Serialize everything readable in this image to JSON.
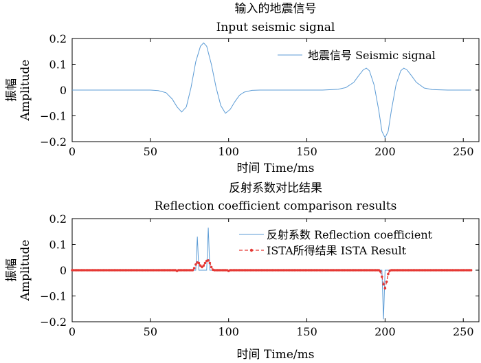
{
  "chart_data": [
    {
      "type": "line",
      "title": "输入的地震信号",
      "subtitle": "Input seismic signal",
      "xlabel": "时间 Time/ms",
      "ylabel_cn": "振幅",
      "ylabel": "Amplitude",
      "xlim": [
        0,
        260
      ],
      "ylim": [
        -0.2,
        0.2
      ],
      "xticks": [
        "0",
        "50",
        "100",
        "150",
        "200",
        "250"
      ],
      "yticks": [
        "0.2",
        "0.1",
        "0",
        "−0.1",
        "−0.2"
      ],
      "legend_position": "top-right",
      "colors": {
        "signal": "#5b9bd5"
      },
      "series": [
        {
          "name": "地震信号 Seismic signal",
          "x": [
            0,
            50,
            55,
            60,
            64,
            67,
            70,
            73,
            76,
            79,
            82,
            84,
            86,
            89,
            92,
            95,
            98,
            101,
            104,
            107,
            110,
            115,
            120,
            130,
            160,
            170,
            175,
            180,
            183,
            186,
            188,
            190,
            193,
            196,
            198,
            200,
            202,
            204,
            207,
            210,
            212,
            214,
            217,
            220,
            225,
            230,
            240,
            255
          ],
          "y": [
            0,
            0,
            -0.002,
            -0.01,
            -0.035,
            -0.065,
            -0.085,
            -0.065,
            0.01,
            0.11,
            0.17,
            0.183,
            0.17,
            0.1,
            0.01,
            -0.06,
            -0.09,
            -0.075,
            -0.045,
            -0.02,
            -0.008,
            -0.001,
            0,
            0,
            0,
            0.003,
            0.01,
            0.03,
            0.055,
            0.078,
            0.085,
            0.075,
            0.02,
            -0.08,
            -0.16,
            -0.185,
            -0.16,
            -0.08,
            0.02,
            0.075,
            0.085,
            0.078,
            0.055,
            0.03,
            0.008,
            0.002,
            0,
            0
          ]
        }
      ]
    },
    {
      "type": "line",
      "title": "反射系数对比结果",
      "subtitle": "Reflection coefficient comparison results",
      "xlabel": "时间 Time/ms",
      "ylabel_cn": "振幅",
      "ylabel": "Amplitude",
      "xlim": [
        0,
        260
      ],
      "ylim": [
        -0.2,
        0.2
      ],
      "xticks": [
        "0",
        "50",
        "100",
        "150",
        "200",
        "250"
      ],
      "yticks": [
        "0.2",
        "0.1",
        "0",
        "−0.1",
        "−0.2"
      ],
      "legend_position": "top-right",
      "colors": {
        "reflection": "#5b9bd5",
        "ista": "#e53935"
      },
      "series": [
        {
          "name": "反射系数 Reflection coefficient",
          "x": [
            0,
            78,
            79,
            80,
            81,
            82,
            85,
            86,
            87,
            88,
            89,
            197,
            198,
            199,
            200,
            201,
            202,
            255
          ],
          "y": [
            0,
            0,
            0,
            0.13,
            0,
            0,
            0,
            0,
            0.165,
            0,
            0,
            0,
            0,
            -0.19,
            0,
            0,
            0,
            0
          ]
        },
        {
          "name": "ISTA所得结果 ISTA Result",
          "x": [
            0,
            66,
            67,
            68,
            76,
            77,
            78,
            79,
            80,
            81,
            82,
            83,
            84,
            85,
            86,
            87,
            88,
            89,
            90,
            91,
            99,
            100,
            101,
            195,
            196,
            197,
            198,
            199,
            200,
            201,
            202,
            203,
            204,
            255
          ],
          "y": [
            0,
            0,
            -0.003,
            0,
            0,
            0,
            0.008,
            0.022,
            0.03,
            0.028,
            0.018,
            0.012,
            0.018,
            0.028,
            0.036,
            0.038,
            0.028,
            0.012,
            0.002,
            0,
            0,
            -0.003,
            0,
            0,
            0,
            -0.005,
            -0.025,
            -0.055,
            -0.07,
            -0.045,
            -0.015,
            -0.002,
            0,
            0
          ]
        }
      ]
    }
  ]
}
